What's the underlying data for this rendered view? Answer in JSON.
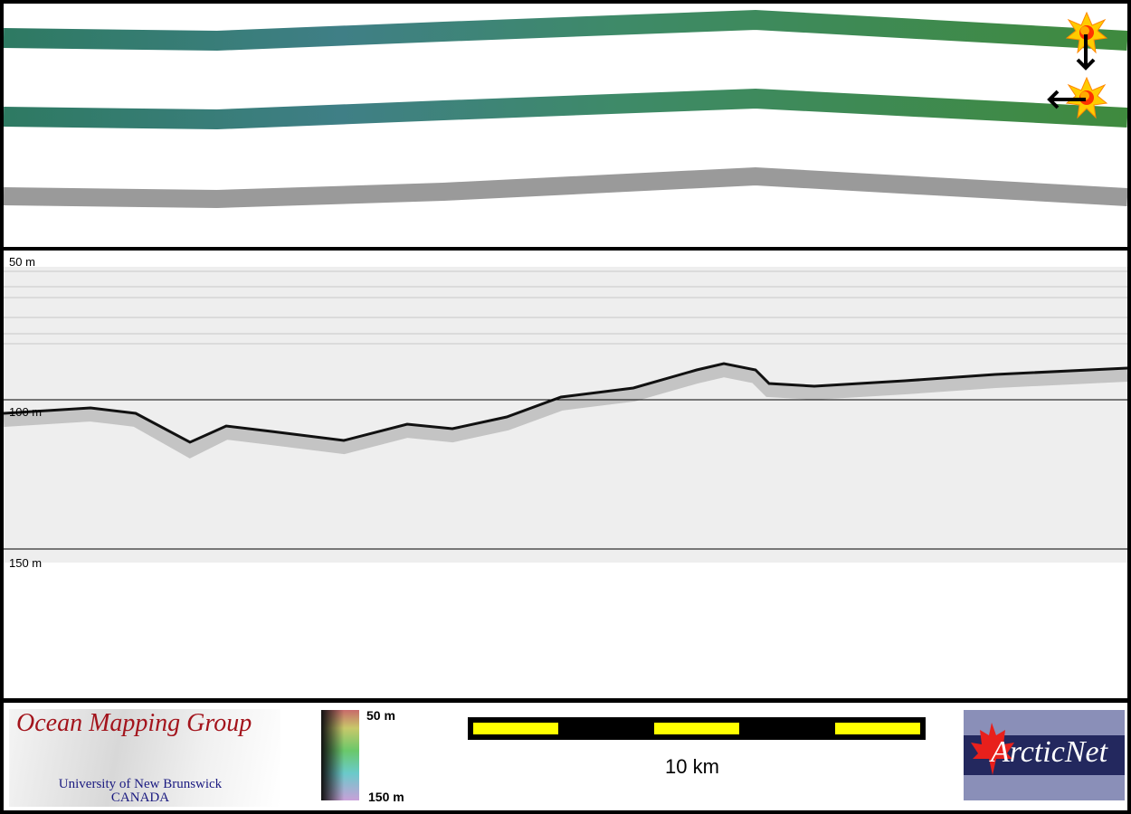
{
  "profile": {
    "depth_labels": [
      "50 m",
      "100 m",
      "150 m"
    ]
  },
  "colorbar": {
    "top_label": "50 m",
    "bottom_label": "150 m"
  },
  "scale_bar": {
    "label": "10 km",
    "colors": {
      "fill": "#ffff00",
      "alt": "#000000"
    }
  },
  "logos": {
    "omg_title": "Ocean Mapping Group",
    "omg_line1": "University of New Brunswick",
    "omg_line2": "CANADA",
    "arcticnet": "ArcticNet"
  },
  "markers": [
    "sun-marker-icon",
    "arrow-down-icon",
    "arrow-left-icon"
  ]
}
